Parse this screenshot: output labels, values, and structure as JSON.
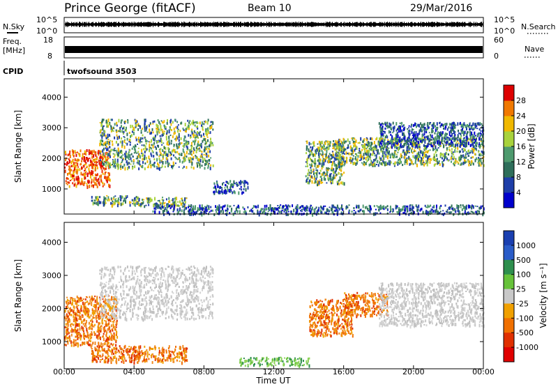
{
  "header": {
    "station": "Prince George (fitACF)",
    "beam": "Beam 10",
    "date": "29/Mar/2016"
  },
  "strips": {
    "nsky_label": "N.Sky",
    "nsky_ticks": [
      "10^5",
      "10^0"
    ],
    "nsearch_label": "N.Search",
    "nsearch_ticks": [
      "10^5",
      "10^0"
    ],
    "freq_label_1": "Freq.",
    "freq_label_2": "[MHz]",
    "freq_ticks": [
      "18",
      "8"
    ],
    "nave_label": "Nave",
    "nave_ticks": [
      "60",
      "0"
    ],
    "cpid_label": "CPID",
    "cpid_value": "twofsound 3503"
  },
  "chart_data": [
    {
      "type": "heatmap",
      "panel": "power",
      "ylabel": "Slant Range [km]",
      "ylim": [
        180,
        4600
      ],
      "xlim": [
        0,
        24
      ],
      "ytick_labels": [
        "1000",
        "2000",
        "3000",
        "4000"
      ],
      "colorbar": {
        "label": "Power [dB]",
        "range": [
          0,
          32
        ],
        "tick_labels": [
          "4",
          "8",
          "12",
          "16",
          "20",
          "24",
          "28"
        ],
        "colors": [
          "#0000cc",
          "#1e3ea8",
          "#2e6e5a",
          "#4e9a6e",
          "#a8d23c",
          "#f0b800",
          "#f07800",
          "#dd0000"
        ]
      },
      "scatter_regions": [
        {
          "t": [
            0.0,
            2.6
          ],
          "range": [
            1100,
            2300
          ],
          "level": "high"
        },
        {
          "t": [
            1.5,
            4.2
          ],
          "range": [
            500,
            800
          ],
          "level": "mid"
        },
        {
          "t": [
            4.0,
            7.0
          ],
          "range": [
            450,
            750
          ],
          "level": "mid"
        },
        {
          "t": [
            2.0,
            8.5
          ],
          "range": [
            1700,
            3300
          ],
          "level": "mid"
        },
        {
          "t": [
            8.5,
            10.5
          ],
          "range": [
            900,
            1300
          ],
          "level": "low"
        },
        {
          "t": [
            13.8,
            16.0
          ],
          "range": [
            1200,
            2600
          ],
          "level": "mid"
        },
        {
          "t": [
            15.5,
            24.0
          ],
          "range": [
            1800,
            2700
          ],
          "level": "mid"
        },
        {
          "t": [
            18.0,
            24.0
          ],
          "range": [
            2400,
            3200
          ],
          "level": "low"
        },
        {
          "t": [
            5.0,
            24.0
          ],
          "range": [
            200,
            500
          ],
          "level": "low"
        }
      ]
    },
    {
      "type": "heatmap",
      "panel": "velocity",
      "xlabel": "Time UT",
      "ylabel": "Slant Range [km]",
      "ylim": [
        180,
        4600
      ],
      "xlim": [
        0,
        24
      ],
      "xtick_labels": [
        "00:00",
        "04:00",
        "08:00",
        "12:00",
        "16:00",
        "20:00",
        "00:00"
      ],
      "ytick_labels": [
        "1000",
        "2000",
        "3000",
        "4000"
      ],
      "colorbar": {
        "label": "Velocity [m s⁻¹]",
        "tick_labels": [
          "1000",
          "500",
          "100",
          "25",
          "-25",
          "-100",
          "-500",
          "-1000"
        ],
        "colors": [
          "#1a3fb0",
          "#2a5cc8",
          "#2e8f4e",
          "#67c23a",
          "#c8c8c8",
          "#f0a000",
          "#f07000",
          "#e03000",
          "#e00000"
        ]
      },
      "scatter_regions": [
        {
          "t": [
            0.0,
            3.0
          ],
          "range": [
            900,
            2400
          ],
          "level": "negative"
        },
        {
          "t": [
            1.5,
            7.0
          ],
          "range": [
            400,
            900
          ],
          "level": "negative"
        },
        {
          "t": [
            2.0,
            8.5
          ],
          "range": [
            1700,
            3300
          ],
          "level": "zero"
        },
        {
          "t": [
            10.0,
            14.0
          ],
          "range": [
            300,
            550
          ],
          "level": "positive"
        },
        {
          "t": [
            14.0,
            16.5
          ],
          "range": [
            1200,
            2300
          ],
          "level": "negative"
        },
        {
          "t": [
            16.0,
            18.5
          ],
          "range": [
            1800,
            2500
          ],
          "level": "negative"
        },
        {
          "t": [
            18.0,
            24.0
          ],
          "range": [
            1500,
            2800
          ],
          "level": "zero"
        }
      ]
    }
  ]
}
